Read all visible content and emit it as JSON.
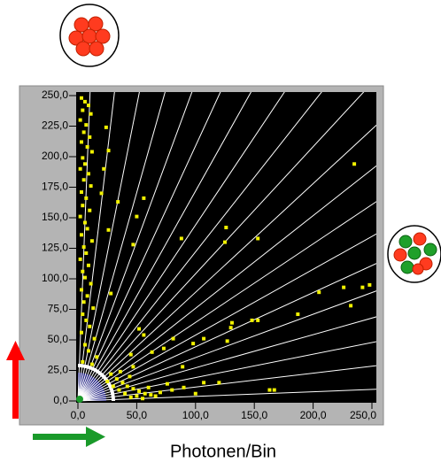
{
  "chart_data": {
    "type": "scatter",
    "x_label": "Photonen/Bin",
    "xlim": [
      0,
      250
    ],
    "ylim": [
      0,
      250
    ],
    "xticks": [
      {
        "value": 0,
        "label": "0,0"
      },
      {
        "value": 50,
        "label": "50,0"
      },
      {
        "value": 100,
        "label": "100,0"
      },
      {
        "value": 150,
        "label": "150,0"
      },
      {
        "value": 200,
        "label": "200,0"
      },
      {
        "value": 250,
        "label": "250,0"
      }
    ],
    "yticks": [
      {
        "value": 0,
        "label": "0,0"
      },
      {
        "value": 25,
        "label": "25,0"
      },
      {
        "value": 50,
        "label": "50,0"
      },
      {
        "value": 75,
        "label": "75,0"
      },
      {
        "value": 100,
        "label": "100,0"
      },
      {
        "value": 125,
        "label": "125,0"
      },
      {
        "value": 150,
        "label": "150,0"
      },
      {
        "value": 175,
        "label": "175,0"
      },
      {
        "value": 200,
        "label": "200,0"
      },
      {
        "value": 225,
        "label": "225,0"
      },
      {
        "value": 250,
        "label": "250,0"
      }
    ],
    "color": "#f2f200",
    "x": [
      3,
      6,
      9,
      4,
      11,
      2,
      7,
      5,
      10,
      3,
      8,
      12,
      4,
      6,
      2,
      9,
      5,
      11,
      3,
      7,
      4,
      10,
      2,
      6,
      8,
      3,
      12,
      5,
      7,
      2,
      9,
      4,
      6,
      11,
      3,
      8,
      5,
      13,
      4,
      7,
      10,
      3,
      14,
      6,
      9,
      16,
      4,
      12,
      24,
      26,
      22,
      20,
      28,
      33,
      38,
      42,
      47,
      52,
      57,
      62,
      66,
      30,
      35,
      40,
      45,
      50,
      55,
      60,
      70,
      25,
      36,
      44,
      76,
      80,
      90,
      100,
      120,
      235,
      153,
      126,
      125,
      88,
      56,
      50,
      34,
      26,
      47,
      28,
      226,
      242,
      248,
      205,
      232,
      187,
      130,
      148,
      153,
      131,
      127,
      107,
      98,
      81,
      73,
      56,
      52,
      89,
      107,
      163,
      167,
      63,
      45,
      47
    ],
    "values": [
      248,
      245,
      242,
      238,
      235,
      230,
      226,
      220,
      216,
      212,
      208,
      204,
      199,
      194,
      190,
      186,
      181,
      176,
      171,
      166,
      160,
      156,
      151,
      146,
      141,
      136,
      131,
      126,
      121,
      116,
      111,
      106,
      101,
      96,
      91,
      86,
      81,
      76,
      71,
      66,
      61,
      56,
      51,
      46,
      41,
      36,
      32,
      30,
      224,
      205,
      190,
      170,
      22,
      18,
      15,
      12,
      10,
      8,
      6,
      5,
      4,
      12,
      9,
      6,
      3,
      4,
      2,
      11,
      7,
      16,
      24,
      20,
      14,
      9,
      11,
      6,
      15,
      194,
      133,
      142,
      130,
      133,
      166,
      151,
      163,
      140,
      128,
      88,
      93,
      93,
      95,
      89,
      78,
      71,
      60,
      66,
      66,
      64,
      49,
      51,
      47,
      51,
      43,
      54,
      59,
      28,
      15,
      9,
      9,
      40,
      38,
      28
    ]
  }
}
